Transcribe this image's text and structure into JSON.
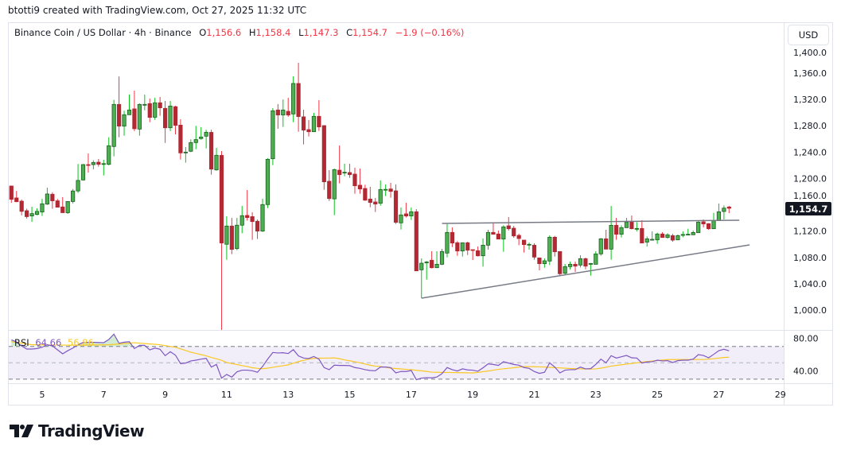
{
  "credit": "btotti9 created with TradingView.com, Oct 27, 2025 11:32 UTC",
  "legend": {
    "symbol": "Binance Coin / US Dollar · 4h · Binance",
    "o_label": "O",
    "o": "1,156.6",
    "h_label": "H",
    "h": "1,158.4",
    "l_label": "L",
    "l": "1,147.3",
    "c_label": "C",
    "c": "1,154.7",
    "change": "−1.9 (−0.16%)"
  },
  "currency_button": "USD",
  "current_price": "1,154.7",
  "rsi_legend": {
    "label": "RSI",
    "value": "64.66",
    "ma": "56.86"
  },
  "logo_text": "TradingView",
  "colors": {
    "up": "#4caf50",
    "up_border": "#1b5e20",
    "up_wick": "#08c41a",
    "down": "#b22833",
    "down_wick": "#f23645",
    "rsi": "#7e57c2",
    "rsi_ma": "#f9c823",
    "trendline": "#787b86"
  },
  "chart_data": {
    "type": "candlestick",
    "symbol": "BNB/USD",
    "interval": "4h",
    "start": "2025-10-04 00:00",
    "ylim": [
      970,
      1400
    ],
    "price_ticks": [
      "1,400.0",
      "1,360.0",
      "1,320.0",
      "1,280.0",
      "1,240.0",
      "1,200.0",
      "1,160.0",
      "1,120.0",
      "1,080.0",
      "1,040.0",
      "1,000.0"
    ],
    "x_ticks": [
      "5",
      "7",
      "9",
      "11",
      "13",
      "15",
      "17",
      "19",
      "21",
      "23",
      "25",
      "27",
      "29"
    ],
    "candles_ohlc": [
      [
        1188.5,
        1189,
        1163,
        1168.3
      ],
      [
        1170.4,
        1181,
        1164,
        1164.7
      ],
      [
        1165.5,
        1168,
        1144,
        1150
      ],
      [
        1151,
        1154,
        1139,
        1142
      ],
      [
        1143,
        1157,
        1134,
        1146.6
      ],
      [
        1145.4,
        1154.6,
        1144,
        1150
      ],
      [
        1149,
        1169,
        1143,
        1161.5
      ],
      [
        1161,
        1186,
        1160,
        1176.4
      ],
      [
        1176,
        1179,
        1154,
        1166
      ],
      [
        1166,
        1169,
        1156,
        1156.3
      ],
      [
        1156.7,
        1171.6,
        1148,
        1148
      ],
      [
        1148,
        1165.5,
        1146,
        1165
      ],
      [
        1165,
        1184,
        1162,
        1181
      ],
      [
        1181,
        1222,
        1178,
        1197
      ],
      [
        1197.7,
        1222,
        1197,
        1221
      ],
      [
        1221,
        1238,
        1209,
        1220
      ],
      [
        1221,
        1227.5,
        1214,
        1224.3
      ],
      [
        1224.7,
        1229.6,
        1218,
        1221.5
      ],
      [
        1222,
        1228.4,
        1204.6,
        1222.5
      ],
      [
        1221.5,
        1262.6,
        1220,
        1249.7
      ],
      [
        1248.5,
        1319.4,
        1233.6,
        1312.5
      ],
      [
        1312.5,
        1355,
        1262.6,
        1279.5
      ],
      [
        1279.5,
        1303,
        1265,
        1296.8
      ],
      [
        1296.8,
        1327.4,
        1296.8,
        1304
      ],
      [
        1305.7,
        1333.5,
        1272,
        1275.5
      ],
      [
        1275,
        1314,
        1265,
        1312.5
      ],
      [
        1312,
        1327.4,
        1303.6,
        1312.5
      ],
      [
        1313.7,
        1321.4,
        1285.5,
        1292.8
      ],
      [
        1293,
        1322.6,
        1289,
        1315
      ],
      [
        1315,
        1323.8,
        1295.2,
        1307.3
      ],
      [
        1306.5,
        1317.7,
        1254,
        1277
      ],
      [
        1277,
        1317.7,
        1272,
        1310
      ],
      [
        1309,
        1310.5,
        1267,
        1280.7
      ],
      [
        1281,
        1290,
        1228.7,
        1238.8
      ],
      [
        1238.8,
        1247.7,
        1224,
        1240
      ],
      [
        1241.3,
        1259.4,
        1240,
        1254.5
      ],
      [
        1254.5,
        1279.9,
        1244.4,
        1259
      ],
      [
        1260.6,
        1278,
        1259,
        1263
      ],
      [
        1264.2,
        1274,
        1245.6,
        1270.2
      ],
      [
        1270,
        1274,
        1205.8,
        1214.2
      ],
      [
        1213,
        1246.5,
        1211.8,
        1235.2
      ],
      [
        1235,
        1241.6,
        970,
        1102
      ],
      [
        1100,
        1142.6,
        1076.5,
        1127.7
      ],
      [
        1127.7,
        1140,
        1085,
        1092.2
      ],
      [
        1093.4,
        1140,
        1091,
        1129
      ],
      [
        1129,
        1158.3,
        1116.8,
        1143.4
      ],
      [
        1143.8,
        1182.4,
        1136,
        1140.6
      ],
      [
        1142,
        1148.6,
        1106.7,
        1134.5
      ],
      [
        1135,
        1137.7,
        1108,
        1120
      ],
      [
        1120,
        1169.2,
        1118.8,
        1160.3
      ],
      [
        1160.3,
        1230.7,
        1155,
        1229.1
      ],
      [
        1229.9,
        1306.9,
        1220.3,
        1302.8
      ],
      [
        1304,
        1313,
        1275.5,
        1296.4
      ],
      [
        1296.4,
        1320,
        1278.3,
        1304
      ],
      [
        1302,
        1322.6,
        1293.6,
        1296.4
      ],
      [
        1298,
        1355.2,
        1285.5,
        1344.3
      ],
      [
        1344.3,
        1375.7,
        1271,
        1294
      ],
      [
        1293.6,
        1304.4,
        1251.7,
        1273.4
      ],
      [
        1274.2,
        1288.7,
        1263.8,
        1271
      ],
      [
        1271,
        1299.6,
        1271,
        1294.4
      ],
      [
        1294.4,
        1319,
        1272.2,
        1278.3
      ],
      [
        1280.3,
        1280.3,
        1182.8,
        1194.9
      ],
      [
        1195.7,
        1212.6,
        1165.9,
        1169.5
      ],
      [
        1169,
        1215,
        1144.2,
        1213.4
      ],
      [
        1212.6,
        1250,
        1192.5,
        1205.8
      ],
      [
        1209,
        1222.3,
        1203.4,
        1209.4
      ],
      [
        1209,
        1222.3,
        1201,
        1205.8
      ],
      [
        1206.6,
        1216.3,
        1176.8,
        1188.9
      ],
      [
        1189.7,
        1215,
        1176.8,
        1184
      ],
      [
        1184.8,
        1190.5,
        1165.9,
        1167
      ],
      [
        1168.7,
        1187.3,
        1156.3,
        1163.5
      ],
      [
        1164.3,
        1170.4,
        1149,
        1161.1
      ],
      [
        1162.3,
        1197,
        1158.7,
        1183.2
      ],
      [
        1183.2,
        1191,
        1173.2,
        1183.4
      ],
      [
        1184,
        1193.3,
        1170.8,
        1180.4
      ],
      [
        1181.2,
        1191,
        1130.9,
        1133.3
      ],
      [
        1132.5,
        1155.9,
        1122.4,
        1144.6
      ],
      [
        1146.2,
        1163,
        1140.6,
        1143
      ],
      [
        1143,
        1155.9,
        1137,
        1149.4
      ],
      [
        1149.4,
        1153.4,
        1059.6,
        1059.6
      ],
      [
        1061.2,
        1078.5,
        1018.1,
        1071.2
      ],
      [
        1071.7,
        1074.5,
        1046.3,
        1073
      ],
      [
        1075.7,
        1089.4,
        1063.2,
        1064.4
      ],
      [
        1064.4,
        1089.4,
        1064.4,
        1069.6
      ],
      [
        1069.6,
        1093,
        1068.4,
        1089
      ],
      [
        1086.6,
        1130.9,
        1080.1,
        1118
      ],
      [
        1118,
        1125.6,
        1095.8,
        1101.9
      ],
      [
        1102.3,
        1104.7,
        1082.5,
        1089.8
      ],
      [
        1089.8,
        1102.3,
        1081.3,
        1102.3
      ],
      [
        1102.3,
        1103.9,
        1083.7,
        1091
      ],
      [
        1091.8,
        1091.8,
        1076.1,
        1091
      ],
      [
        1090.2,
        1096.6,
        1081.3,
        1082.5
      ],
      [
        1082.5,
        1108.7,
        1066,
        1098.6
      ],
      [
        1098.6,
        1122,
        1091.8,
        1118
      ],
      [
        1118,
        1131.7,
        1115.2,
        1115.2
      ],
      [
        1115.6,
        1120.8,
        1107.9,
        1107.9
      ],
      [
        1107.9,
        1128.8,
        1088.6,
        1126.4
      ],
      [
        1128,
        1141.3,
        1120.8,
        1123.6
      ],
      [
        1124.4,
        1128,
        1109.9,
        1112.7
      ],
      [
        1113.5,
        1116,
        1098.6,
        1108.7
      ],
      [
        1106.3,
        1106.3,
        1087.4,
        1099.5
      ],
      [
        1099.1,
        1102.7,
        1091.8,
        1099.9
      ],
      [
        1098.6,
        1101.5,
        1076.5,
        1080.5
      ],
      [
        1079.3,
        1079.3,
        1060.4,
        1070.5
      ],
      [
        1070.5,
        1078.5,
        1064.4,
        1074.9
      ],
      [
        1074.5,
        1113.5,
        1068.4,
        1110.7
      ],
      [
        1110.7,
        1112.7,
        1081.3,
        1088.6
      ],
      [
        1089,
        1089,
        1051.5,
        1055.2
      ],
      [
        1056,
        1070,
        1054,
        1066
      ],
      [
        1066,
        1073.7,
        1061.6,
        1069.6
      ],
      [
        1069.6,
        1073.7,
        1058,
        1066.8
      ],
      [
        1068.4,
        1083.3,
        1064.8,
        1078.1
      ],
      [
        1078.1,
        1079.7,
        1062,
        1066.8
      ],
      [
        1069.6,
        1071.6,
        1052.3,
        1070.8
      ],
      [
        1069.6,
        1089.4,
        1069.6,
        1085.4
      ],
      [
        1085.4,
        1109.5,
        1082.5,
        1108.3
      ],
      [
        1108.3,
        1122,
        1092.6,
        1092.6
      ],
      [
        1092.6,
        1158.2,
        1076.5,
        1128.8
      ],
      [
        1128.8,
        1140.1,
        1106.7,
        1115.2
      ],
      [
        1115.2,
        1128.8,
        1110.3,
        1125.2
      ],
      [
        1125.2,
        1140.1,
        1125.2,
        1133.7
      ],
      [
        1133.7,
        1143.7,
        1122.8,
        1123.6
      ],
      [
        1123.2,
        1133.7,
        1119.6,
        1124
      ],
      [
        1124,
        1136.5,
        1101.9,
        1101.9
      ],
      [
        1103.3,
        1111.9,
        1096.6,
        1108.3
      ],
      [
        1106.7,
        1119.6,
        1105.5,
        1107.5
      ],
      [
        1106.7,
        1117.6,
        1100.7,
        1115.6
      ],
      [
        1115.6,
        1118.4,
        1110.3,
        1110.3
      ],
      [
        1110.3,
        1116.8,
        1108.7,
        1114.4
      ],
      [
        1113.1,
        1116,
        1103.9,
        1106.3
      ],
      [
        1106.7,
        1114.8,
        1106.7,
        1113.1
      ],
      [
        1114.4,
        1119.6,
        1110.7,
        1114.8
      ],
      [
        1114.4,
        1123.6,
        1114.4,
        1115.2
      ],
      [
        1114.4,
        1120.8,
        1114.4,
        1117.9
      ],
      [
        1117.6,
        1134.9,
        1117.6,
        1133.7
      ],
      [
        1134.1,
        1137.7,
        1125.6,
        1130.9
      ],
      [
        1131.3,
        1132,
        1122,
        1123.6
      ],
      [
        1123.6,
        1147.8,
        1123.6,
        1135.7
      ],
      [
        1136.1,
        1161.9,
        1136.1,
        1149.3
      ],
      [
        1149.8,
        1159,
        1137.7,
        1154.9
      ],
      [
        1156.6,
        1158.4,
        1147.3,
        1154.7
      ]
    ],
    "trendlines": [
      {
        "from": {
          "time": "2025-10-18 00:00",
          "price": 1131.7
        },
        "to": {
          "time": "2025-10-27 16:00",
          "price": 1136.5
        }
      },
      {
        "from": {
          "time": "2025-10-17 08:00",
          "price": 1018.1
        },
        "to": {
          "time": "2025-10-28 00:00",
          "price": 1099
        }
      }
    ],
    "rsi": {
      "ylim": [
        25,
        88
      ],
      "ticks": [
        "80.00",
        "40.00"
      ],
      "bands": [
        70,
        50,
        30
      ],
      "values": [
        78,
        75.5,
        70.6,
        66.8,
        66.8,
        67.4,
        69,
        72,
        70.6,
        65.8,
        61,
        64.8,
        68,
        72,
        74.8,
        75,
        75,
        74.8,
        74.5,
        78.4,
        85,
        73.9,
        75.2,
        75.8,
        67.4,
        71.3,
        71.3,
        65.8,
        68,
        66.5,
        58.7,
        63.5,
        59.4,
        49,
        49.7,
        52.3,
        53.2,
        54.5,
        55.5,
        44.8,
        48,
        31.3,
        35.8,
        32.6,
        39,
        41,
        41,
        40.3,
        38.4,
        45.5,
        54.5,
        62.6,
        62,
        62.3,
        61.3,
        66.1,
        58.4,
        55.8,
        55.2,
        57.7,
        54.5,
        44.2,
        41.6,
        47.1,
        46.8,
        46.8,
        46.5,
        44.2,
        43.2,
        41.6,
        40.6,
        40.3,
        44.8,
        44.8,
        44.2,
        37.7,
        39.4,
        39.4,
        40.6,
        29.4,
        31.3,
        31.9,
        31.6,
        32.6,
        36.8,
        44.2,
        41.6,
        40,
        42.6,
        41.3,
        41,
        39.7,
        43.9,
        48.7,
        48,
        46.8,
        51.3,
        49.7,
        48,
        47.1,
        44.2,
        43.2,
        39.4,
        37.1,
        38.4,
        50,
        44.8,
        37.7,
        41,
        41.6,
        41.6,
        44.8,
        42.6,
        42.9,
        48,
        54.5,
        50,
        58.7,
        55.8,
        57.4,
        59,
        56.1,
        55.8,
        49.7,
        51,
        51.3,
        53.2,
        52.3,
        52.6,
        50.3,
        52.6,
        53.2,
        53.2,
        54.5,
        60,
        59,
        56.1,
        60.3,
        64.8,
        66.5,
        64.66
      ],
      "ma": [
        75.8,
        75,
        74,
        73,
        72,
        72,
        71.9,
        71.8,
        71.7,
        71.7,
        71.6,
        71.6,
        71.6,
        71.6,
        71.6,
        71.7,
        71.8,
        71.8,
        71.9,
        72,
        72.5,
        73,
        73.5,
        74,
        74.5,
        74,
        73.5,
        73,
        72.6,
        72.1,
        71,
        70,
        69,
        67,
        65,
        63,
        61.5,
        60,
        58.5,
        56.5,
        55,
        53,
        50.5,
        49,
        48,
        46.5,
        45.5,
        44,
        43.2,
        42.8,
        43.5,
        44.5,
        45.5,
        46.5,
        47.5,
        49.5,
        51.5,
        53,
        54.5,
        55.5,
        55.6,
        55.7,
        55.8,
        56,
        55,
        53.5,
        52.5,
        51.3,
        50,
        48.5,
        47,
        46,
        45.5,
        44.5,
        43.5,
        43,
        42.5,
        42,
        41.6,
        40.8,
        40.2,
        39.5,
        38.6,
        38.4,
        38.3,
        38.2,
        38.1,
        38,
        37.9,
        37.8,
        37.7,
        38.3,
        39.2,
        40,
        41,
        42,
        42.7,
        43.3,
        44,
        44.8,
        45.4,
        45.3,
        45.2,
        45,
        44.9,
        44.5,
        44.1,
        43.8,
        43.4,
        43,
        42.8,
        42.6,
        42.5,
        42.4,
        42.6,
        43.5,
        44.6,
        46,
        46.8,
        47.6,
        48.4,
        49.2,
        50,
        50.8,
        51.5,
        52.1,
        52.7,
        53.3,
        53.9,
        53.9,
        53.9,
        54,
        54,
        54,
        54,
        54,
        54.5,
        55,
        55.8,
        56.5,
        56.86
      ]
    }
  }
}
